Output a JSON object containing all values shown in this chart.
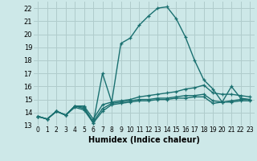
{
  "xlabel": "Humidex (Indice chaleur)",
  "background_color": "#cde8e8",
  "grid_color": "#b0cccc",
  "line_color": "#1a7070",
  "xlim": [
    -0.5,
    23.5
  ],
  "ylim": [
    13,
    22.5
  ],
  "yticks": [
    13,
    14,
    15,
    16,
    17,
    18,
    19,
    20,
    21,
    22
  ],
  "xticks": [
    0,
    1,
    2,
    3,
    4,
    5,
    6,
    7,
    8,
    9,
    10,
    11,
    12,
    13,
    14,
    15,
    16,
    17,
    18,
    19,
    20,
    21,
    22,
    23
  ],
  "series": [
    {
      "x": [
        0,
        1,
        2,
        3,
        4,
        5,
        6,
        7,
        8,
        9,
        10,
        11,
        12,
        13,
        14,
        15,
        16,
        17,
        18,
        19,
        20,
        21,
        22,
        23
      ],
      "y": [
        13.7,
        13.5,
        14.1,
        13.8,
        14.5,
        14.4,
        13.2,
        17.0,
        14.8,
        19.3,
        19.7,
        20.7,
        21.4,
        22.0,
        22.1,
        21.2,
        19.8,
        18.0,
        16.5,
        15.8,
        14.8,
        16.0,
        15.1,
        15.0
      ],
      "lw": 1.0
    },
    {
      "x": [
        0,
        1,
        2,
        3,
        4,
        5,
        6,
        7,
        8,
        9,
        10,
        11,
        12,
        13,
        14,
        15,
        16,
        17,
        18,
        19,
        20,
        21,
        22,
        23
      ],
      "y": [
        13.7,
        13.5,
        14.1,
        13.8,
        14.5,
        14.5,
        13.5,
        14.6,
        14.8,
        14.9,
        15.0,
        15.2,
        15.3,
        15.4,
        15.5,
        15.6,
        15.8,
        15.9,
        16.1,
        15.5,
        15.4,
        15.4,
        15.3,
        15.2
      ],
      "lw": 1.0
    },
    {
      "x": [
        0,
        1,
        2,
        3,
        4,
        5,
        6,
        7,
        8,
        9,
        10,
        11,
        12,
        13,
        14,
        15,
        16,
        17,
        18,
        19,
        20,
        21,
        22,
        23
      ],
      "y": [
        13.7,
        13.5,
        14.1,
        13.8,
        14.5,
        14.3,
        13.3,
        14.3,
        14.7,
        14.8,
        14.9,
        15.0,
        15.0,
        15.1,
        15.1,
        15.2,
        15.3,
        15.3,
        15.4,
        14.9,
        14.8,
        14.9,
        15.0,
        15.0
      ],
      "lw": 1.0
    },
    {
      "x": [
        0,
        1,
        2,
        3,
        4,
        5,
        6,
        7,
        8,
        9,
        10,
        11,
        12,
        13,
        14,
        15,
        16,
        17,
        18,
        19,
        20,
        21,
        22,
        23
      ],
      "y": [
        13.7,
        13.5,
        14.1,
        13.8,
        14.4,
        14.2,
        13.2,
        14.1,
        14.6,
        14.7,
        14.8,
        14.9,
        14.9,
        15.0,
        15.0,
        15.1,
        15.1,
        15.2,
        15.2,
        14.7,
        14.8,
        14.8,
        14.9,
        14.9
      ],
      "lw": 1.0
    }
  ]
}
